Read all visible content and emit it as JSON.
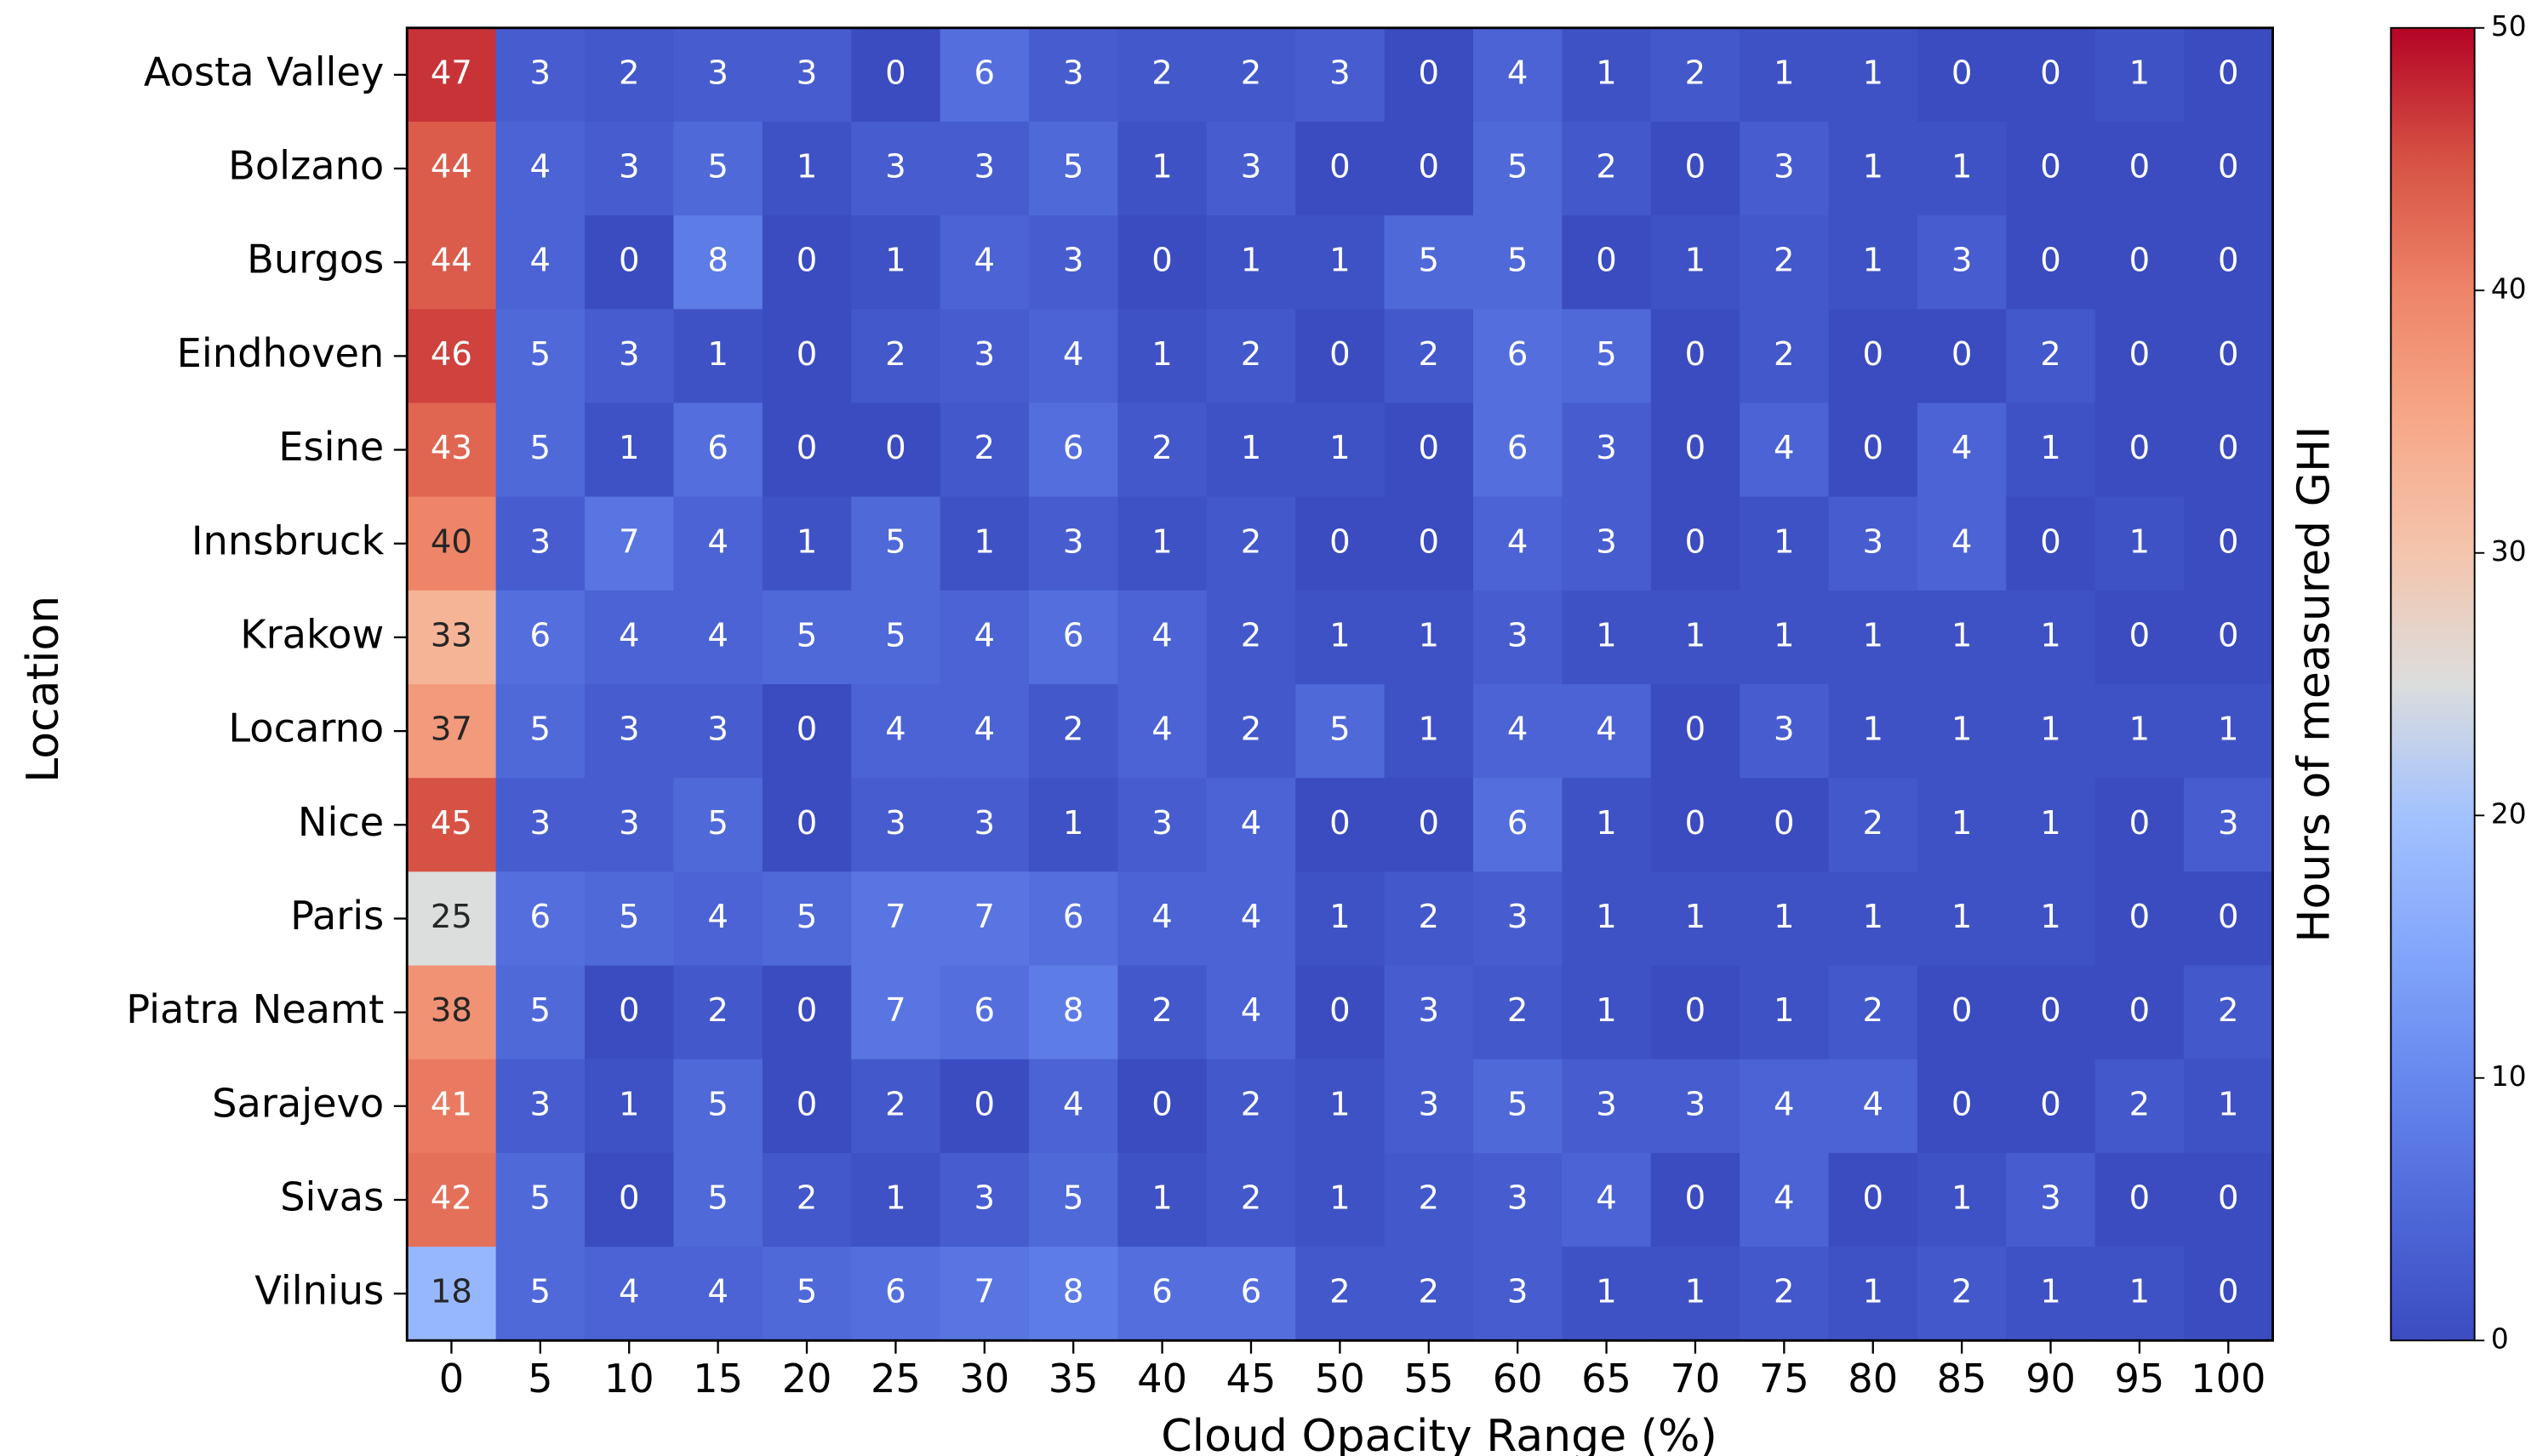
{
  "chart_data": {
    "type": "heatmap",
    "xlabel": "Cloud Opacity Range (%)",
    "ylabel": "Location",
    "colorbar_label": "Hours of measured GHI",
    "colormap": "coolwarm",
    "clim": [
      0,
      50
    ],
    "cticks": [
      0,
      10,
      20,
      30,
      40,
      50
    ],
    "categories": [
      0,
      5,
      10,
      15,
      20,
      25,
      30,
      35,
      40,
      45,
      50,
      55,
      60,
      65,
      70,
      75,
      80,
      85,
      90,
      95,
      100
    ],
    "rows": [
      "Aosta Valley",
      "Bolzano",
      "Burgos",
      "Eindhoven",
      "Esine",
      "Innsbruck",
      "Krakow",
      "Locarno",
      "Nice",
      "Paris",
      "Piatra Neamt",
      "Sarajevo",
      "Sivas",
      "Vilnius"
    ],
    "values": [
      [
        47,
        3,
        2,
        3,
        3,
        0,
        6,
        3,
        2,
        2,
        3,
        0,
        4,
        1,
        2,
        1,
        1,
        0,
        0,
        1,
        0
      ],
      [
        44,
        4,
        3,
        5,
        1,
        3,
        3,
        5,
        1,
        3,
        0,
        0,
        5,
        2,
        0,
        3,
        1,
        1,
        0,
        0,
        0
      ],
      [
        44,
        4,
        0,
        8,
        0,
        1,
        4,
        3,
        0,
        1,
        1,
        5,
        5,
        0,
        1,
        2,
        1,
        3,
        0,
        0,
        0
      ],
      [
        46,
        5,
        3,
        1,
        0,
        2,
        3,
        4,
        1,
        2,
        0,
        2,
        6,
        5,
        0,
        2,
        0,
        0,
        2,
        0,
        0
      ],
      [
        43,
        5,
        1,
        6,
        0,
        0,
        2,
        6,
        2,
        1,
        1,
        0,
        6,
        3,
        0,
        4,
        0,
        4,
        1,
        0,
        0
      ],
      [
        40,
        3,
        7,
        4,
        1,
        5,
        1,
        3,
        1,
        2,
        0,
        0,
        4,
        3,
        0,
        1,
        3,
        4,
        0,
        1,
        0
      ],
      [
        33,
        6,
        4,
        4,
        5,
        5,
        4,
        6,
        4,
        2,
        1,
        1,
        3,
        1,
        1,
        1,
        1,
        1,
        1,
        0,
        0
      ],
      [
        37,
        5,
        3,
        3,
        0,
        4,
        4,
        2,
        4,
        2,
        5,
        1,
        4,
        4,
        0,
        3,
        1,
        1,
        1,
        1,
        1
      ],
      [
        45,
        3,
        3,
        5,
        0,
        3,
        3,
        1,
        3,
        4,
        0,
        0,
        6,
        1,
        0,
        0,
        2,
        1,
        1,
        0,
        3
      ],
      [
        25,
        6,
        5,
        4,
        5,
        7,
        7,
        6,
        4,
        4,
        1,
        2,
        3,
        1,
        1,
        1,
        1,
        1,
        1,
        0,
        0
      ],
      [
        38,
        5,
        0,
        2,
        0,
        7,
        6,
        8,
        2,
        4,
        0,
        3,
        2,
        1,
        0,
        1,
        2,
        0,
        0,
        0,
        2
      ],
      [
        41,
        3,
        1,
        5,
        0,
        2,
        0,
        4,
        0,
        2,
        1,
        3,
        5,
        3,
        3,
        4,
        4,
        0,
        0,
        2,
        1
      ],
      [
        42,
        5,
        0,
        5,
        2,
        1,
        3,
        5,
        1,
        2,
        1,
        2,
        3,
        4,
        0,
        4,
        0,
        1,
        3,
        0,
        0
      ],
      [
        18,
        5,
        4,
        4,
        5,
        6,
        7,
        8,
        6,
        6,
        2,
        2,
        3,
        1,
        1,
        2,
        1,
        2,
        1,
        1,
        0
      ]
    ]
  }
}
